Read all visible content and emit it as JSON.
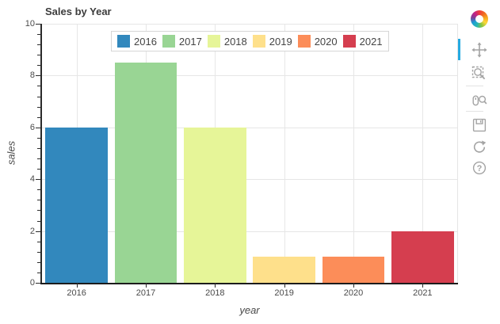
{
  "title": "Sales by Year",
  "chart_data": {
    "type": "bar",
    "title": "Sales by Year",
    "categories": [
      "2016",
      "2017",
      "2018",
      "2019",
      "2020",
      "2021"
    ],
    "values": [
      6,
      8.5,
      6,
      1,
      1,
      2
    ],
    "bar_colors": [
      "#3288bd",
      "#99d594",
      "#e6f598",
      "#fee08b",
      "#fc8d59",
      "#d53e4f"
    ],
    "xlabel": "year",
    "ylabel": "sales",
    "ylim": [
      0,
      10
    ],
    "y_major_ticks": [
      0,
      2,
      4,
      6,
      8,
      10
    ],
    "y_minor_tick_step": 0.4,
    "bar_width_fraction": 0.9,
    "grid": "on",
    "legend": {
      "position": "top-center",
      "entries": [
        "2016",
        "2017",
        "2018",
        "2019",
        "2020",
        "2021"
      ]
    }
  },
  "toolbar": {
    "logo": "bokeh-logo",
    "tools": [
      "pan",
      "box-zoom",
      "wheel-zoom",
      "save",
      "reset",
      "help"
    ],
    "active_tool": "pan",
    "active_indicator_color": "#26aae1",
    "icon_color": "#a3a3a3"
  },
  "colors": {
    "background": "#ffffff",
    "grid_line": "#e6e6e6",
    "axis_line": "#2b2b2b",
    "title_text": "#3c3c3c",
    "tick_label": "#4a4a4a",
    "axis_label": "#4a4a4a",
    "legend_border": "#d6d6d6"
  }
}
